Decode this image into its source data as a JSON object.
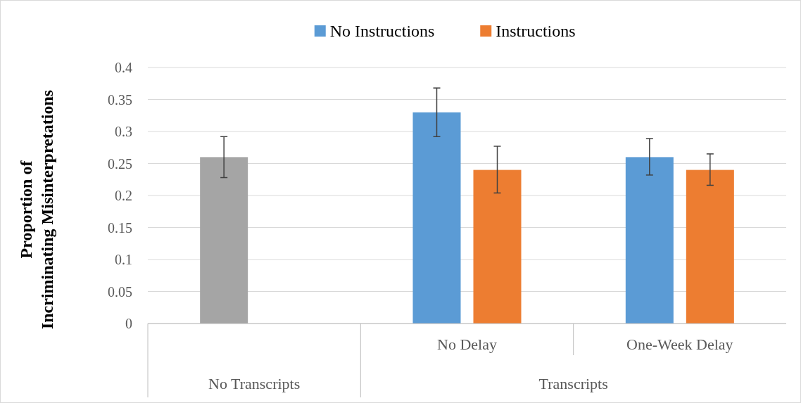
{
  "chart_data": {
    "type": "bar",
    "ylabel": "Proportion of Incriminating Misinterpretations",
    "categories": [
      null,
      "No Delay",
      "One-Week Delay"
    ],
    "series": [
      {
        "name": "No Instructions",
        "color": "#5b9bd5",
        "colors": [
          "#a5a5a5",
          "#5b9bd5",
          "#5b9bd5"
        ],
        "values": [
          0.26,
          0.33,
          0.26
        ],
        "errors": [
          [
            0.228,
            0.292
          ],
          [
            0.292,
            0.368
          ],
          [
            0.232,
            0.289
          ]
        ]
      },
      {
        "name": "Instructions",
        "color": "#ed7d31",
        "values": [
          null,
          0.24,
          0.24
        ],
        "errors": [
          null,
          [
            0.204,
            0.277
          ],
          [
            0.216,
            0.265
          ]
        ]
      }
    ],
    "annotations": [
      "No Transcripts",
      "Transcripts"
    ],
    "ylim": [
      0,
      0.4
    ],
    "yticks": [
      0,
      0.05,
      0.1,
      0.15,
      0.2,
      0.25,
      0.3,
      0.35,
      0.4
    ],
    "grid": "y",
    "legend": "top"
  }
}
